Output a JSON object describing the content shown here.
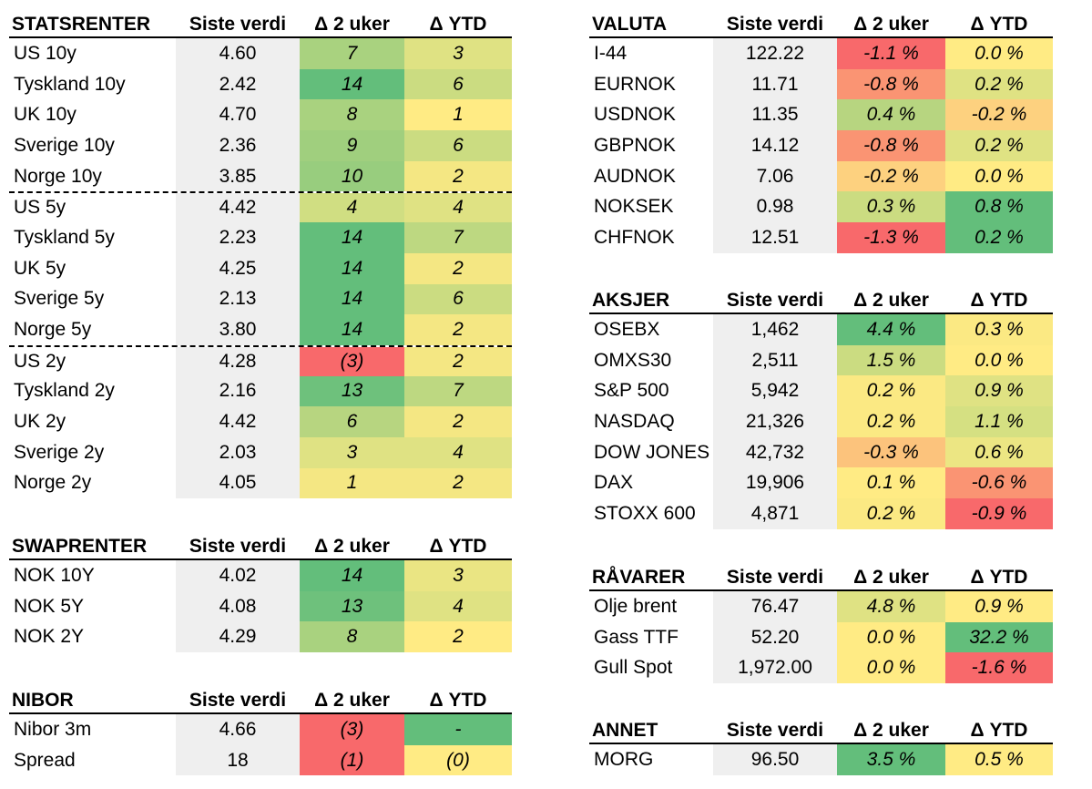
{
  "colors": {
    "dark_green": "#63be7b",
    "green": "#86c97e",
    "mid_green": "#a9d27f",
    "light_green": "#cbdc81",
    "yellow_green": "#dfe283",
    "yellow": "#ffeb84",
    "light_orange": "#fdd17f",
    "orange": "#fba276",
    "red": "#f8696b",
    "grey": "#efefef"
  },
  "tables": [
    {
      "id": "statsrenter",
      "headers": [
        "STATSRENTER",
        "Siste verdi",
        "Δ 2 uker",
        "Δ YTD"
      ],
      "rows": [
        {
          "label": "US 10y",
          "value": "4.60",
          "d2w": "7",
          "ytd": "3",
          "d2w_color": "#a9d27f",
          "ytd_color": "#dfe283",
          "sep": false
        },
        {
          "label": "Tyskland 10y",
          "value": "2.42",
          "d2w": "14",
          "ytd": "6",
          "d2w_color": "#63be7b",
          "ytd_color": "#cbdc81",
          "sep": false
        },
        {
          "label": "UK 10y",
          "value": "4.70",
          "d2w": "8",
          "ytd": "1",
          "d2w_color": "#a9d27f",
          "ytd_color": "#ffeb84",
          "sep": false
        },
        {
          "label": "Sverige 10y",
          "value": "2.36",
          "d2w": "9",
          "ytd": "6",
          "d2w_color": "#a0cf7e",
          "ytd_color": "#cbdc81",
          "sep": false
        },
        {
          "label": "Norge 10y",
          "value": "3.85",
          "d2w": "10",
          "ytd": "2",
          "d2w_color": "#98cd7e",
          "ytd_color": "#f4e783",
          "sep": false
        },
        {
          "label": "US 5y",
          "value": "4.42",
          "d2w": "4",
          "ytd": "4",
          "d2w_color": "#d0de82",
          "ytd_color": "#dfe283",
          "sep": true
        },
        {
          "label": "Tyskland 5y",
          "value": "2.23",
          "d2w": "14",
          "ytd": "7",
          "d2w_color": "#63be7b",
          "ytd_color": "#bdd881",
          "sep": false
        },
        {
          "label": "UK 5y",
          "value": "4.25",
          "d2w": "14",
          "ytd": "2",
          "d2w_color": "#63be7b",
          "ytd_color": "#f4e783",
          "sep": false
        },
        {
          "label": "Sverige 5y",
          "value": "2.13",
          "d2w": "14",
          "ytd": "6",
          "d2w_color": "#63be7b",
          "ytd_color": "#cbdc81",
          "sep": false
        },
        {
          "label": "Norge 5y",
          "value": "3.80",
          "d2w": "14",
          "ytd": "2",
          "d2w_color": "#63be7b",
          "ytd_color": "#f4e783",
          "sep": false
        },
        {
          "label": "US 2y",
          "value": "4.28",
          "d2w": "(3)",
          "ytd": "2",
          "d2w_color": "#f8696b",
          "ytd_color": "#f4e783",
          "sep": true
        },
        {
          "label": "Tyskland 2y",
          "value": "2.16",
          "d2w": "13",
          "ytd": "7",
          "d2w_color": "#6ec17c",
          "ytd_color": "#bdd881",
          "sep": false
        },
        {
          "label": "UK 2y",
          "value": "4.42",
          "d2w": "6",
          "ytd": "2",
          "d2w_color": "#b7d580",
          "ytd_color": "#f4e783",
          "sep": false
        },
        {
          "label": "Sverige 2y",
          "value": "2.03",
          "d2w": "3",
          "ytd": "4",
          "d2w_color": "#dfe283",
          "ytd_color": "#dfe283",
          "sep": false
        },
        {
          "label": "Norge 2y",
          "value": "4.05",
          "d2w": "1",
          "ytd": "2",
          "d2w_color": "#f4e783",
          "ytd_color": "#f4e783",
          "sep": false
        }
      ]
    },
    {
      "id": "swaprenter",
      "headers": [
        "SWAPRENTER",
        "Siste verdi",
        "Δ 2 uker",
        "Δ YTD"
      ],
      "rows": [
        {
          "label": "NOK 10Y",
          "value": "4.02",
          "d2w": "14",
          "ytd": "3",
          "d2w_color": "#63be7b",
          "ytd_color": "#eae583",
          "sep": false
        },
        {
          "label": "NOK 5Y",
          "value": "4.08",
          "d2w": "13",
          "ytd": "4",
          "d2w_color": "#6ec17c",
          "ytd_color": "#dfe283",
          "sep": false
        },
        {
          "label": "NOK 2Y",
          "value": "4.29",
          "d2w": "8",
          "ytd": "2",
          "d2w_color": "#a9d27f",
          "ytd_color": "#ffeb84",
          "sep": false
        }
      ]
    },
    {
      "id": "nibor",
      "headers": [
        "NIBOR",
        "Siste verdi",
        "Δ 2 uker",
        "Δ YTD"
      ],
      "rows": [
        {
          "label": "Nibor 3m",
          "value": "4.66",
          "d2w": "(3)",
          "ytd": "-",
          "d2w_color": "#f8696b",
          "ytd_color": "#63be7b",
          "sep": false
        },
        {
          "label": "Spread",
          "value": "18",
          "d2w": "(1)",
          "ytd": "(0)",
          "d2w_color": "#f8696b",
          "ytd_color": "#ffeb84",
          "sep": false
        }
      ]
    },
    {
      "id": "valuta",
      "headers": [
        "VALUTA",
        "Siste verdi",
        "Δ 2 uker",
        "Δ YTD"
      ],
      "rows": [
        {
          "label": "I-44",
          "value": "122.22",
          "d2w": "-1.1 %",
          "ytd": "0.0 %",
          "d2w_color": "#f8696b",
          "ytd_color": "#ffeb84",
          "sep": false
        },
        {
          "label": "EURNOK",
          "value": "11.71",
          "d2w": "-0.8 %",
          "ytd": "0.2 %",
          "d2w_color": "#fa9473",
          "ytd_color": "#dfe283",
          "sep": false
        },
        {
          "label": "USDNOK",
          "value": "11.35",
          "d2w": "0.4 %",
          "ytd": "-0.2 %",
          "d2w_color": "#b7d580",
          "ytd_color": "#fdd17f",
          "sep": false
        },
        {
          "label": "GBPNOK",
          "value": "14.12",
          "d2w": "-0.8 %",
          "ytd": "0.2 %",
          "d2w_color": "#fa9473",
          "ytd_color": "#dfe283",
          "sep": false
        },
        {
          "label": "AUDNOK",
          "value": "7.06",
          "d2w": "-0.2 %",
          "ytd": "0.0 %",
          "d2w_color": "#fdd17f",
          "ytd_color": "#ffeb84",
          "sep": false
        },
        {
          "label": "NOKSEK",
          "value": "0.98",
          "d2w": "0.3 %",
          "ytd": "0.8 %",
          "d2w_color": "#cbdc81",
          "ytd_color": "#63be7b",
          "sep": false
        },
        {
          "label": "CHFNOK",
          "value": "12.51",
          "d2w": "-1.3 %",
          "ytd": "0.2 %",
          "d2w_color": "#f8696b",
          "ytd_color": "#63be7b",
          "sep": false
        }
      ]
    },
    {
      "id": "aksjer",
      "headers": [
        "AKSJER",
        "Siste verdi",
        "Δ 2 uker",
        "Δ YTD"
      ],
      "rows": [
        {
          "label": "OSEBX",
          "value": "1,462",
          "d2w": "4.4 %",
          "ytd": "0.3 %",
          "d2w_color": "#63be7b",
          "ytd_color": "#fbe983",
          "sep": false
        },
        {
          "label": "OMXS30",
          "value": "2,511",
          "d2w": "1.5 %",
          "ytd": "0.0 %",
          "d2w_color": "#cbdc81",
          "ytd_color": "#ffeb84",
          "sep": false
        },
        {
          "label": "S&P 500",
          "value": "5,942",
          "d2w": "0.2 %",
          "ytd": "0.9 %",
          "d2w_color": "#fbe983",
          "ytd_color": "#dfe283",
          "sep": false
        },
        {
          "label": "NASDAQ",
          "value": "21,326",
          "d2w": "0.2 %",
          "ytd": "1.1 %",
          "d2w_color": "#fbe983",
          "ytd_color": "#d5e082",
          "sep": false
        },
        {
          "label": "DOW JONES",
          "value": "42,732",
          "d2w": "-0.3 %",
          "ytd": "0.6 %",
          "d2w_color": "#fcc37c",
          "ytd_color": "#ece683",
          "sep": false
        },
        {
          "label": "DAX",
          "value": "19,906",
          "d2w": "0.1 %",
          "ytd": "-0.6 %",
          "d2w_color": "#ffeb84",
          "ytd_color": "#fa9473",
          "sep": false
        },
        {
          "label": "STOXX 600",
          "value": "4,871",
          "d2w": "0.2 %",
          "ytd": "-0.9 %",
          "d2w_color": "#fbe983",
          "ytd_color": "#f8696b",
          "sep": false
        }
      ]
    },
    {
      "id": "ravarer",
      "headers": [
        "RÅVARER",
        "Siste verdi",
        "Δ 2 uker",
        "Δ YTD"
      ],
      "rows": [
        {
          "label": "Olje brent",
          "value": "76.47",
          "d2w": "4.8 %",
          "ytd": "0.9 %",
          "d2w_color": "#dfe283",
          "ytd_color": "#ffeb84",
          "sep": false
        },
        {
          "label": "Gass TTF",
          "value": "52.20",
          "d2w": "0.0 %",
          "ytd": "32.2 %",
          "d2w_color": "#ffeb84",
          "ytd_color": "#63be7b",
          "sep": false
        },
        {
          "label": "Gull Spot",
          "value": "1,972.00",
          "d2w": "0.0 %",
          "ytd": "-1.6 %",
          "d2w_color": "#ffeb84",
          "ytd_color": "#f8696b",
          "sep": false
        }
      ]
    },
    {
      "id": "annet",
      "headers": [
        "ANNET",
        "Siste verdi",
        "Δ 2 uker",
        "Δ YTD"
      ],
      "rows": [
        {
          "label": "MORG",
          "value": "96.50",
          "d2w": "3.5 %",
          "ytd": "0.5 %",
          "d2w_color": "#63be7b",
          "ytd_color": "#ffeb84",
          "sep": false
        }
      ]
    }
  ]
}
